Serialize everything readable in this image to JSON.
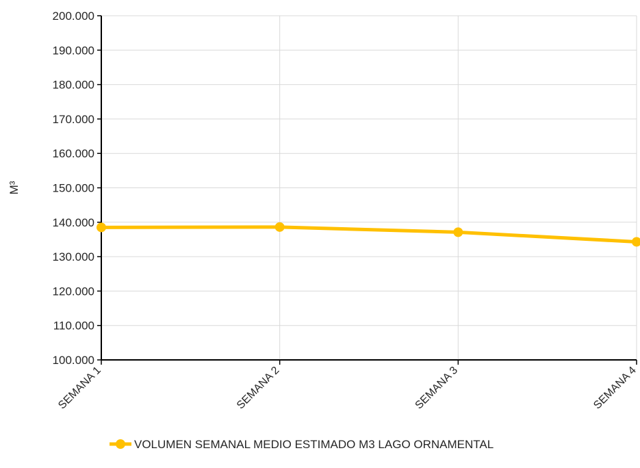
{
  "chart_data": {
    "type": "line",
    "categories": [
      "SEMANA 1",
      "SEMANA 2",
      "SEMANA 3",
      "SEMANA 4"
    ],
    "y_tick_labels": [
      "100.000",
      "110.000",
      "120.000",
      "130.000",
      "140.000",
      "150.000",
      "160.000",
      "170.000",
      "180.000",
      "190.000",
      "200.000"
    ],
    "series": [
      {
        "name": "VOLUMEN SEMANAL MEDIO ESTIMADO M3 LAGO ORNAMENTAL",
        "values": [
          138500,
          138600,
          137100,
          134300
        ],
        "color": "#FFC000"
      }
    ],
    "ylabel": "M³",
    "ylim": [
      100000,
      200000
    ],
    "grid": true,
    "legend_position": "bottom"
  }
}
